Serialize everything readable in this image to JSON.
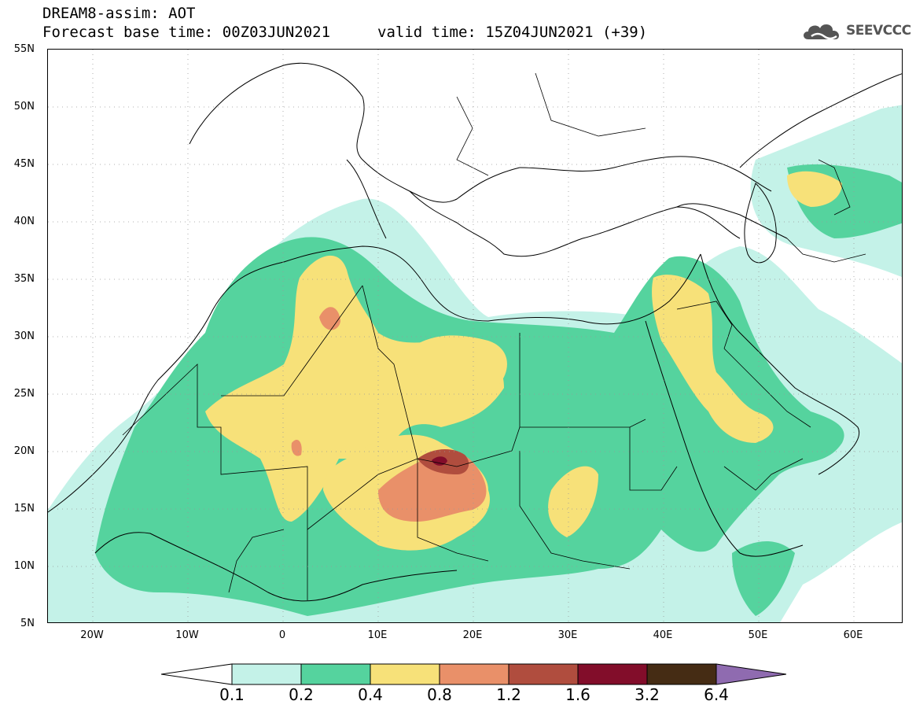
{
  "header": {
    "title": "DREAM8-assim: AOT",
    "base_time": "Forecast base time: 00Z03JUN2021",
    "valid_time": "valid time: 15Z04JUN2021 (+39)",
    "logo_text": "SEEVCCC",
    "logo_icon": "cloud-icon"
  },
  "map": {
    "lat_labels": [
      "55N",
      "50N",
      "45N",
      "40N",
      "35N",
      "30N",
      "25N",
      "20N",
      "15N",
      "10N",
      "5N"
    ],
    "lon_labels": [
      "20W",
      "10W",
      "0",
      "10E",
      "20E",
      "30E",
      "40E",
      "50E",
      "60E"
    ],
    "lat_range": [
      5,
      55
    ],
    "lon_range": [
      -25,
      65
    ],
    "grid": true
  },
  "colorbar": {
    "labels": [
      "0.1",
      "0.2",
      "0.4",
      "0.8",
      "1.2",
      "1.6",
      "3.2",
      "6.4"
    ],
    "colors": [
      "#ffffff",
      "#c4f2e8",
      "#55d39e",
      "#f7e179",
      "#e99069",
      "#b04d3e",
      "#820d2a",
      "#452c14",
      "#8f6bb0"
    ]
  }
}
